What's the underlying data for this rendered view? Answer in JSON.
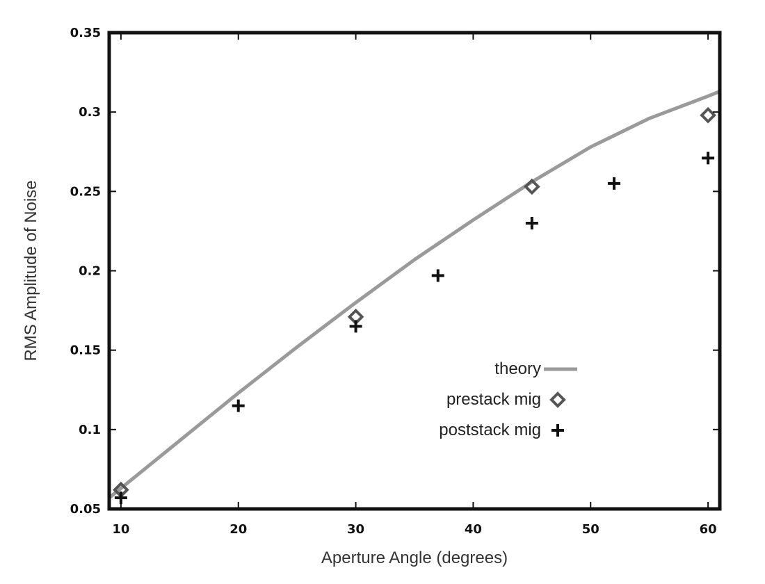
{
  "chart_data": {
    "type": "scatter",
    "title": "",
    "xlabel": "Aperture Angle (degrees)",
    "ylabel": "RMS Amplitude of Noise",
    "xlim": [
      9,
      61
    ],
    "ylim": [
      0.05,
      0.35
    ],
    "x_ticks": [
      "10",
      "20",
      "30",
      "40",
      "50",
      "60"
    ],
    "y_ticks": [
      "0.05",
      "0.1",
      "0.15",
      "0.2",
      "0.25",
      "0.3",
      "0.35"
    ],
    "grid": false,
    "legend_position": "lower-right",
    "legend": [
      "theory",
      "prestack mig",
      "poststack mig"
    ],
    "series": [
      {
        "name": "theory",
        "style": "line",
        "color": "#9a9a9a",
        "x": [
          9,
          10,
          15,
          20,
          25,
          30,
          35,
          40,
          45,
          50,
          55,
          60,
          61
        ],
        "y": [
          0.057,
          0.063,
          0.093,
          0.123,
          0.152,
          0.18,
          0.207,
          0.232,
          0.256,
          0.278,
          0.296,
          0.31,
          0.313
        ]
      },
      {
        "name": "prestack mig",
        "style": "diamond",
        "color": "#555555",
        "x": [
          10,
          30,
          45,
          60
        ],
        "y": [
          0.062,
          0.171,
          0.253,
          0.298
        ]
      },
      {
        "name": "poststack mig",
        "style": "plus",
        "color": "#111111",
        "x": [
          10,
          20,
          30,
          37,
          45,
          52,
          60
        ],
        "y": [
          0.057,
          0.115,
          0.165,
          0.197,
          0.23,
          0.255,
          0.271
        ]
      }
    ]
  }
}
